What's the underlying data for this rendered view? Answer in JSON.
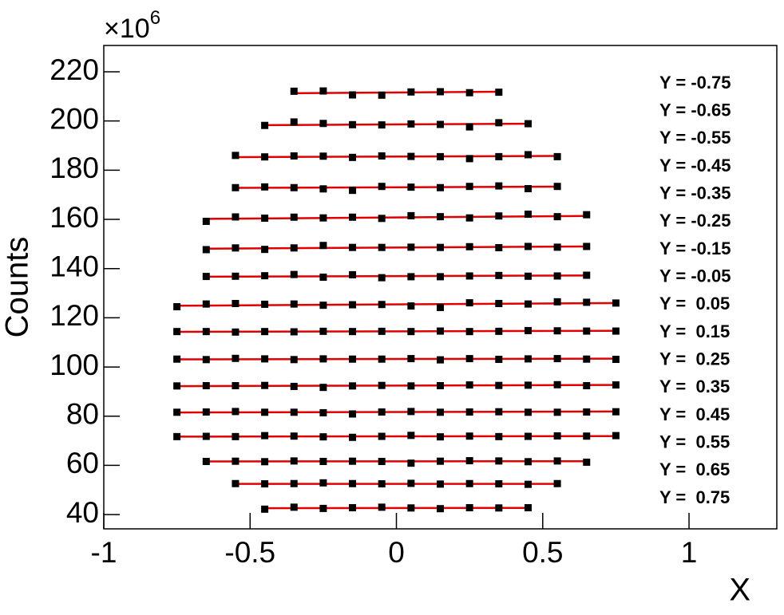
{
  "chart_data": {
    "type": "scatter",
    "xlabel": "X",
    "ylabel": "Counts",
    "y_multiplier": {
      "base": "×10",
      "exponent": 6
    },
    "xlim": [
      -1,
      1.3
    ],
    "ylim": [
      34.2,
      230.7
    ],
    "xticks": [
      -1,
      -0.5,
      0,
      0.5,
      1
    ],
    "yticks": [
      40,
      60,
      80,
      100,
      120,
      140,
      160,
      180,
      200,
      220
    ],
    "marker_color": "#000000",
    "fit_color": "#e00000",
    "series": [
      {
        "name": "Y = -0.75",
        "x": [
          -0.35,
          -0.25,
          -0.15,
          -0.05,
          0.05,
          0.15,
          0.25,
          0.35
        ],
        "values": [
          212.1,
          212.2,
          210.6,
          210.5,
          211.8,
          211.9,
          211.5,
          211.7
        ],
        "fit": [
          211.3,
          211.9
        ]
      },
      {
        "name": "Y = -0.65",
        "x": [
          -0.45,
          -0.35,
          -0.25,
          -0.15,
          -0.05,
          0.05,
          0.15,
          0.25,
          0.35,
          0.45
        ],
        "values": [
          198.2,
          199.6,
          199.0,
          198.5,
          198.4,
          198.8,
          198.6,
          197.6,
          199.3,
          198.9
        ],
        "fit": [
          198.3,
          198.9
        ]
      },
      {
        "name": "Y = -0.55",
        "x": [
          -0.55,
          -0.45,
          -0.35,
          -0.25,
          -0.15,
          -0.05,
          0.05,
          0.15,
          0.25,
          0.35,
          0.45,
          0.55
        ],
        "values": [
          186.0,
          185.4,
          185.8,
          185.7,
          185.2,
          185.8,
          185.6,
          185.5,
          184.7,
          185.5,
          186.3,
          185.5
        ],
        "fit": [
          185.3,
          185.8
        ]
      },
      {
        "name": "Y = -0.45",
        "x": [
          -0.55,
          -0.45,
          -0.35,
          -0.25,
          -0.15,
          -0.05,
          0.05,
          0.15,
          0.25,
          0.35,
          0.45,
          0.55
        ],
        "values": [
          172.9,
          173.2,
          172.9,
          172.4,
          171.8,
          173.4,
          173.1,
          172.9,
          173.4,
          173.6,
          172.5,
          173.4
        ],
        "fit": [
          172.8,
          173.3
        ]
      },
      {
        "name": "Y = -0.35",
        "x": [
          -0.65,
          -0.55,
          -0.45,
          -0.35,
          -0.25,
          -0.15,
          -0.05,
          0.05,
          0.15,
          0.25,
          0.35,
          0.45,
          0.55,
          0.65
        ],
        "values": [
          159.2,
          161.0,
          160.5,
          160.9,
          160.6,
          160.9,
          160.4,
          161.5,
          161.1,
          160.6,
          161.4,
          162.1,
          161.1,
          161.9
        ],
        "fit": [
          160.2,
          161.4
        ]
      },
      {
        "name": "Y = -0.25",
        "x": [
          -0.65,
          -0.55,
          -0.45,
          -0.35,
          -0.25,
          -0.15,
          -0.05,
          0.05,
          0.15,
          0.25,
          0.35,
          0.45,
          0.55,
          0.65
        ],
        "values": [
          147.7,
          148.4,
          147.8,
          148.4,
          149.4,
          148.6,
          148.6,
          148.7,
          148.6,
          148.9,
          148.5,
          149.0,
          148.7,
          149.0
        ],
        "fit": [
          148.1,
          149.0
        ]
      },
      {
        "name": "Y = -0.15",
        "x": [
          -0.65,
          -0.55,
          -0.45,
          -0.35,
          -0.25,
          -0.15,
          -0.05,
          0.05,
          0.15,
          0.25,
          0.35,
          0.45,
          0.55,
          0.65
        ],
        "values": [
          136.8,
          136.9,
          137.1,
          137.6,
          136.5,
          137.5,
          136.3,
          136.7,
          136.7,
          137.0,
          137.2,
          136.9,
          137.0,
          137.3
        ],
        "fit": [
          136.7,
          137.2
        ]
      },
      {
        "name": "Y = -0.05",
        "x": [
          -0.75,
          -0.65,
          -0.55,
          -0.45,
          -0.35,
          -0.25,
          -0.15,
          -0.05,
          0.05,
          0.15,
          0.25,
          0.35,
          0.45,
          0.55,
          0.65,
          0.75
        ],
        "values": [
          124.5,
          125.6,
          125.8,
          125.5,
          125.6,
          125.1,
          125.3,
          125.4,
          124.8,
          124.2,
          126.1,
          125.8,
          125.6,
          126.5,
          126.3,
          126.0
        ],
        "fit": [
          124.9,
          126.0
        ]
      },
      {
        "name": "Y =  0.05",
        "x": [
          -0.75,
          -0.65,
          -0.55,
          -0.45,
          -0.35,
          -0.25,
          -0.15,
          -0.05,
          0.05,
          0.15,
          0.25,
          0.35,
          0.45,
          0.55,
          0.65,
          0.75
        ],
        "values": [
          114.4,
          114.4,
          114.2,
          114.4,
          114.3,
          114.5,
          114.4,
          114.5,
          114.4,
          114.6,
          114.4,
          114.5,
          114.8,
          114.7,
          114.6,
          114.6
        ],
        "fit": [
          114.3,
          114.7
        ]
      },
      {
        "name": "Y =  0.15",
        "x": [
          -0.75,
          -0.65,
          -0.55,
          -0.45,
          -0.35,
          -0.25,
          -0.15,
          -0.05,
          0.05,
          0.15,
          0.25,
          0.35,
          0.45,
          0.55,
          0.65,
          0.75
        ],
        "values": [
          103.2,
          103.0,
          103.5,
          103.3,
          103.0,
          103.3,
          103.2,
          103.2,
          103.4,
          102.9,
          103.4,
          103.1,
          103.3,
          103.4,
          103.2,
          103.1
        ],
        "fit": [
          103.1,
          103.4
        ]
      },
      {
        "name": "Y =  0.25",
        "x": [
          -0.75,
          -0.65,
          -0.55,
          -0.45,
          -0.35,
          -0.25,
          -0.15,
          -0.05,
          0.05,
          0.15,
          0.25,
          0.35,
          0.45,
          0.55,
          0.65,
          0.75
        ],
        "values": [
          92.3,
          92.4,
          92.4,
          92.5,
          92.1,
          91.7,
          92.3,
          92.5,
          92.3,
          92.4,
          92.7,
          92.5,
          92.6,
          92.8,
          92.4,
          92.7
        ],
        "fit": [
          92.2,
          92.7
        ]
      },
      {
        "name": "Y =  0.35",
        "x": [
          -0.75,
          -0.65,
          -0.55,
          -0.45,
          -0.35,
          -0.25,
          -0.15,
          -0.05,
          0.05,
          0.15,
          0.25,
          0.35,
          0.45,
          0.55,
          0.65,
          0.75
        ],
        "values": [
          81.6,
          81.7,
          81.9,
          81.6,
          81.6,
          81.4,
          80.9,
          81.7,
          81.9,
          81.6,
          81.7,
          81.8,
          81.6,
          81.6,
          81.7,
          81.8
        ],
        "fit": [
          81.5,
          81.9
        ]
      },
      {
        "name": "Y =  0.45",
        "x": [
          -0.75,
          -0.65,
          -0.55,
          -0.45,
          -0.35,
          -0.25,
          -0.15,
          -0.05,
          0.05,
          0.15,
          0.25,
          0.35,
          0.45,
          0.55,
          0.65,
          0.75
        ],
        "values": [
          71.7,
          71.8,
          71.7,
          72.1,
          71.9,
          71.6,
          71.4,
          71.8,
          72.2,
          71.6,
          71.9,
          71.7,
          71.8,
          72.0,
          71.9,
          72.1
        ],
        "fit": [
          71.7,
          71.9
        ]
      },
      {
        "name": "Y =  0.55",
        "x": [
          -0.65,
          -0.55,
          -0.45,
          -0.35,
          -0.25,
          -0.15,
          -0.05,
          0.05,
          0.15,
          0.25,
          0.35,
          0.45,
          0.55,
          0.65
        ],
        "values": [
          61.6,
          61.7,
          61.5,
          61.8,
          61.6,
          61.7,
          61.6,
          60.9,
          61.7,
          61.9,
          61.8,
          61.5,
          61.8,
          61.3
        ],
        "fit": [
          61.6,
          61.7
        ]
      },
      {
        "name": "Y =  0.65",
        "x": [
          -0.55,
          -0.45,
          -0.35,
          -0.25,
          -0.15,
          -0.05,
          0.05,
          0.15,
          0.25,
          0.35,
          0.45,
          0.55
        ],
        "values": [
          52.6,
          52.5,
          52.6,
          52.9,
          52.6,
          52.5,
          52.7,
          52.4,
          52.6,
          52.5,
          52.3,
          52.6
        ],
        "fit": [
          52.5,
          52.5
        ]
      },
      {
        "name": "Y =  0.75",
        "x": [
          -0.45,
          -0.35,
          -0.25,
          -0.15,
          -0.05,
          0.05,
          0.15,
          0.25,
          0.35,
          0.45
        ],
        "values": [
          42.2,
          43.0,
          42.5,
          42.8,
          43.0,
          42.7,
          42.4,
          42.8,
          42.7,
          42.8
        ],
        "fit": [
          42.6,
          42.7
        ]
      }
    ]
  }
}
